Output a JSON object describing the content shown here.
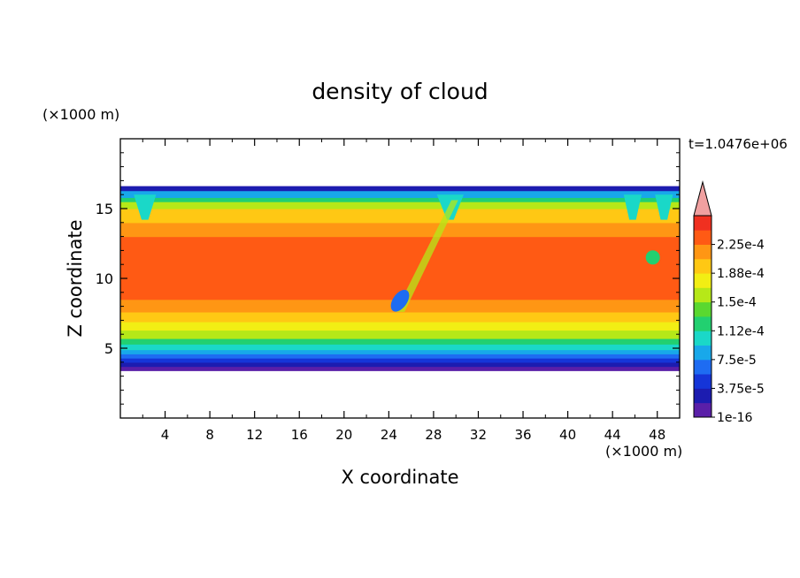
{
  "chart_data": {
    "type": "heatmap",
    "title": "density of cloud",
    "xlabel": "X coordinate",
    "ylabel": "Z coordinate",
    "x_unit": "(×1000 m)",
    "y_unit": "(×1000 m)",
    "time_label": "t=1.0476e+06",
    "xlim": [
      0,
      50
    ],
    "ylim": [
      0,
      20
    ],
    "x_ticks": [
      4,
      8,
      12,
      16,
      20,
      24,
      28,
      32,
      36,
      40,
      44,
      48
    ],
    "y_ticks": [
      5,
      10,
      15
    ],
    "colorbar": {
      "labels": [
        "1e-16",
        "3.75e-5",
        "7.5e-5",
        "1.12e-4",
        "1.5e-4",
        "1.88e-4",
        "2.25e-4"
      ],
      "levels": [
        1e-16,
        1.875e-05,
        3.75e-05,
        5.625e-05,
        7.5e-05,
        9.375e-05,
        0.0001125,
        0.00013125,
        0.00015,
        0.00016875,
        0.0001875,
        0.00020625,
        0.000225,
        0.00024375
      ],
      "colors": [
        "#5a1fa8",
        "#1c1cb0",
        "#1535d8",
        "#1e6cf2",
        "#18a8ea",
        "#1ad8c8",
        "#22d070",
        "#5ad830",
        "#b6e818",
        "#f2ee14",
        "#ffc814",
        "#ff9614",
        "#ff5a14",
        "#f03020",
        "#f0a0a0"
      ]
    },
    "cloud_layer": {
      "bottom": 3.4,
      "top": 16.6
    },
    "vertical_profile": [
      {
        "z": 3.4,
        "value": 1e-16
      },
      {
        "z": 3.7,
        "value": 1.9e-05
      },
      {
        "z": 4.0,
        "value": 4e-05
      },
      {
        "z": 4.3,
        "value": 6e-05
      },
      {
        "z": 4.6,
        "value": 8e-05
      },
      {
        "z": 4.9,
        "value": 0.0001
      },
      {
        "z": 5.3,
        "value": 0.00012
      },
      {
        "z": 5.7,
        "value": 0.00014
      },
      {
        "z": 6.3,
        "value": 0.00016
      },
      {
        "z": 6.9,
        "value": 0.00018
      },
      {
        "z": 7.6,
        "value": 0.0002
      },
      {
        "z": 8.5,
        "value": 0.00022
      },
      {
        "z": 9.5,
        "value": 0.00023
      },
      {
        "z": 11.5,
        "value": 0.00023
      },
      {
        "z": 13.0,
        "value": 0.00022
      },
      {
        "z": 14.0,
        "value": 0.0002
      },
      {
        "z": 15.0,
        "value": 0.000185
      },
      {
        "z": 15.5,
        "value": 0.00015
      },
      {
        "z": 15.8,
        "value": 0.00011
      },
      {
        "z": 16.1,
        "value": 6e-05
      },
      {
        "z": 16.4,
        "value": 2e-05
      },
      {
        "z": 16.6,
        "value": 1e-16
      }
    ]
  }
}
